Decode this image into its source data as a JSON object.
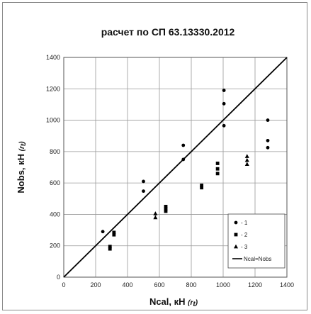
{
  "chart_data": {
    "type": "scatter",
    "title": "расчет по СП 63.13330.2012",
    "xlabel": "Ncal, кН",
    "xlabel_sub": "(r",
    "xlabel_subscript": "t",
    "xlabel_close": ")",
    "ylabel": "Nobs, кН",
    "ylabel_sub": "(r",
    "ylabel_subscript": "t",
    "ylabel_close": ")",
    "xlim": [
      0,
      1400
    ],
    "ylim": [
      0,
      1400
    ],
    "xticks": [
      0,
      200,
      400,
      600,
      800,
      1000,
      1200,
      1400
    ],
    "yticks": [
      0,
      200,
      400,
      600,
      800,
      1000,
      1200,
      1400
    ],
    "grid": true,
    "legend_position": "bottom-right",
    "series": [
      {
        "name": "- 1",
        "marker": "circle",
        "points": [
          {
            "x": 245,
            "y": 290
          },
          {
            "x": 500,
            "y": 610
          },
          {
            "x": 500,
            "y": 548
          },
          {
            "x": 750,
            "y": 840
          },
          {
            "x": 750,
            "y": 750
          },
          {
            "x": 1005,
            "y": 1190
          },
          {
            "x": 1005,
            "y": 1105
          },
          {
            "x": 1005,
            "y": 965
          },
          {
            "x": 1280,
            "y": 1000
          },
          {
            "x": 1280,
            "y": 870
          },
          {
            "x": 1280,
            "y": 825
          }
        ]
      },
      {
        "name": "- 2",
        "marker": "square",
        "points": [
          {
            "x": 290,
            "y": 195
          },
          {
            "x": 290,
            "y": 180
          },
          {
            "x": 315,
            "y": 285
          },
          {
            "x": 315,
            "y": 270
          },
          {
            "x": 640,
            "y": 450
          },
          {
            "x": 640,
            "y": 435
          },
          {
            "x": 640,
            "y": 420
          },
          {
            "x": 865,
            "y": 585
          },
          {
            "x": 865,
            "y": 570
          },
          {
            "x": 965,
            "y": 725
          },
          {
            "x": 965,
            "y": 690
          },
          {
            "x": 965,
            "y": 660
          }
        ]
      },
      {
        "name": "- 3",
        "marker": "triangle",
        "points": [
          {
            "x": 575,
            "y": 405
          },
          {
            "x": 575,
            "y": 380
          },
          {
            "x": 1150,
            "y": 770
          },
          {
            "x": 1150,
            "y": 745
          },
          {
            "x": 1150,
            "y": 720
          }
        ]
      }
    ],
    "reference_line": {
      "name": "Ncal=Nobs",
      "from": [
        0,
        0
      ],
      "to": [
        1400,
        1400
      ]
    }
  }
}
